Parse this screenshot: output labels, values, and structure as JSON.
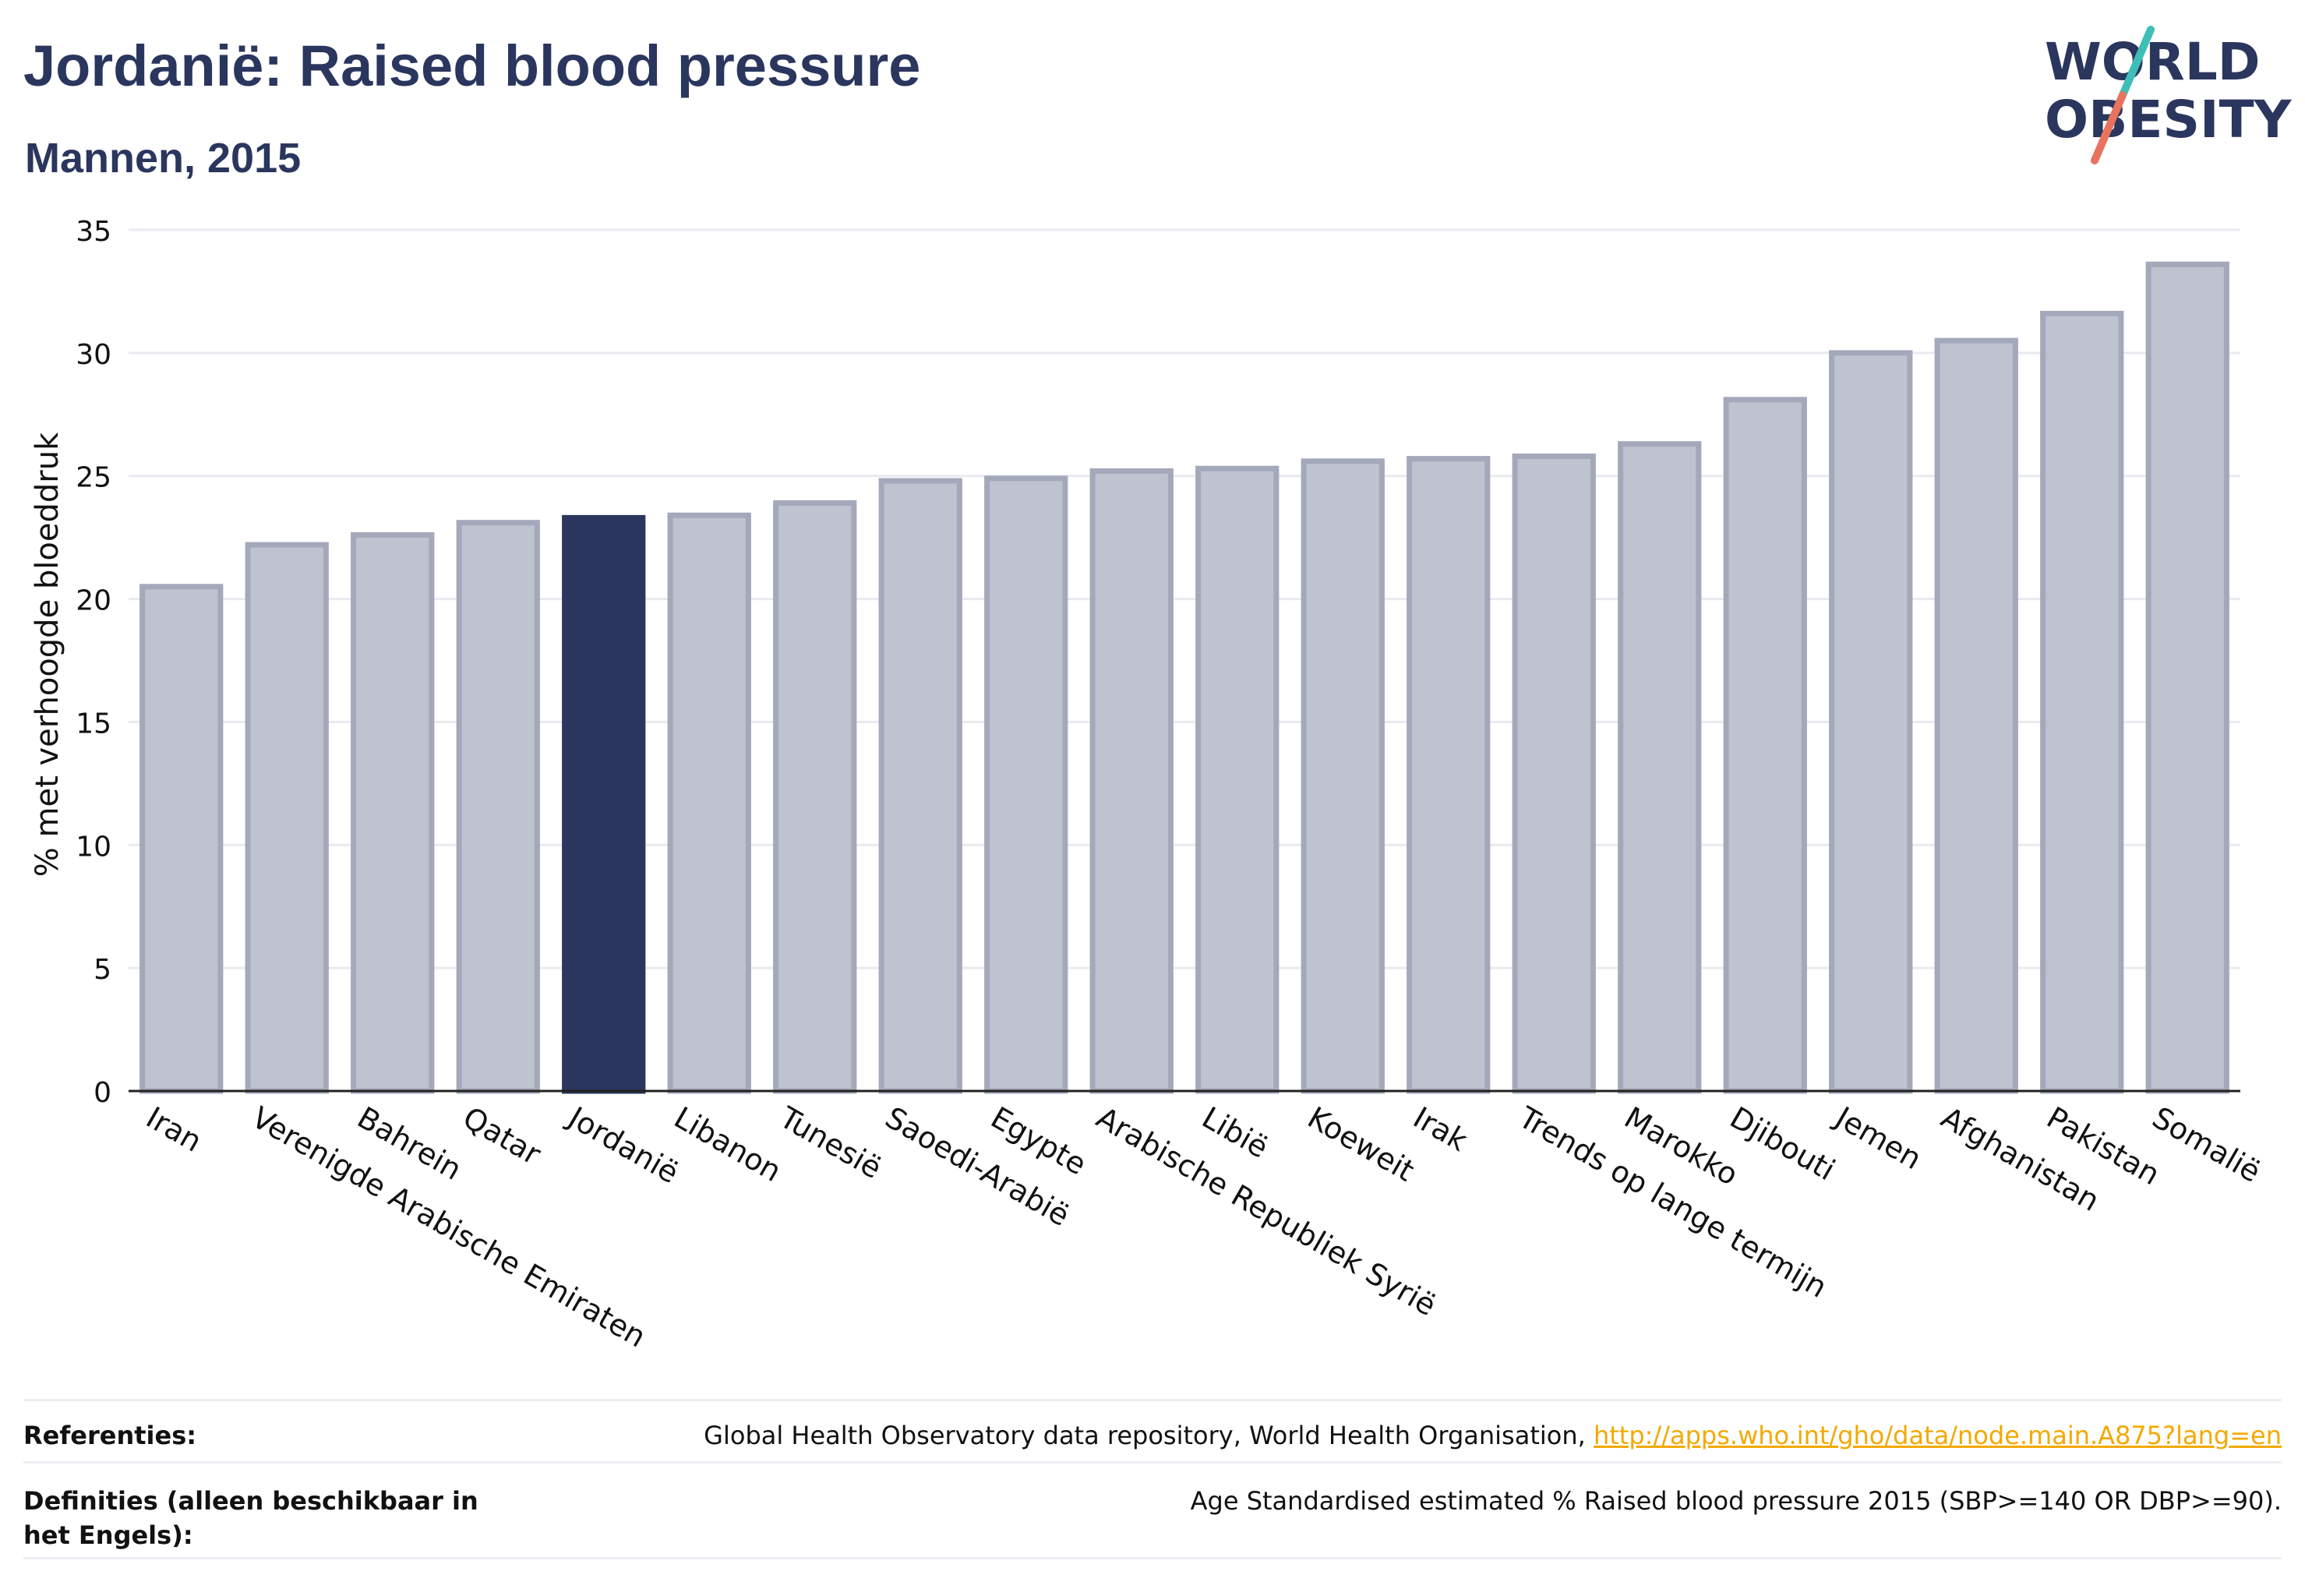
{
  "header": {
    "title": "Jordanië: Raised blood pressure",
    "subtitle": "Mannen, 2015"
  },
  "logo": {
    "line1": "WORLD",
    "line2": "OBESITY",
    "colors": {
      "text": "#2b365e",
      "teal": "#3dbfb8",
      "coral": "#e8735f"
    }
  },
  "chart_data": {
    "type": "bar",
    "ylabel": "% met verhoogde bloeddruk",
    "ylim": [
      0,
      35
    ],
    "yticks": [
      0,
      5,
      10,
      15,
      20,
      25,
      30,
      35
    ],
    "grid": true,
    "categories": [
      "Iran",
      "Verenigde Arabische Emiraten",
      "Bahrein",
      "Qatar",
      "Jordanië",
      "Libanon",
      "Tunesië",
      "Saoedi-Arabië",
      "Egypte",
      "Arabische Republiek Syrië",
      "Libië",
      "Koeweit",
      "Irak",
      "Trends op lange termijn",
      "Marokko",
      "Djibouti",
      "Jemen",
      "Afghanistan",
      "Pakistan",
      "Somalië"
    ],
    "values": [
      20.5,
      22.2,
      22.6,
      23.1,
      23.3,
      23.4,
      23.9,
      24.8,
      24.9,
      25.2,
      25.3,
      25.6,
      25.7,
      25.8,
      26.3,
      28.1,
      30.0,
      30.5,
      31.6,
      33.6
    ],
    "highlight": "Jordanië",
    "colors": {
      "bar": "#bfc2cf",
      "bar_edge": "#a3a8ba",
      "highlight": "#2b365e",
      "grid": "#e9eaf0",
      "axis": "#222222"
    }
  },
  "footer": {
    "references_label": "Referenties:",
    "references_text": "Global Health Observatory data repository, World Health Organisation, ",
    "references_link": "http://apps.who.int/gho/data/node.main.A875?lang=en",
    "definitions_label": "Definities (alleen beschikbaar in het Engels):",
    "definitions_text": "Age Standardised estimated % Raised blood pressure 2015 (SBP>=140 OR DBP>=90)."
  }
}
